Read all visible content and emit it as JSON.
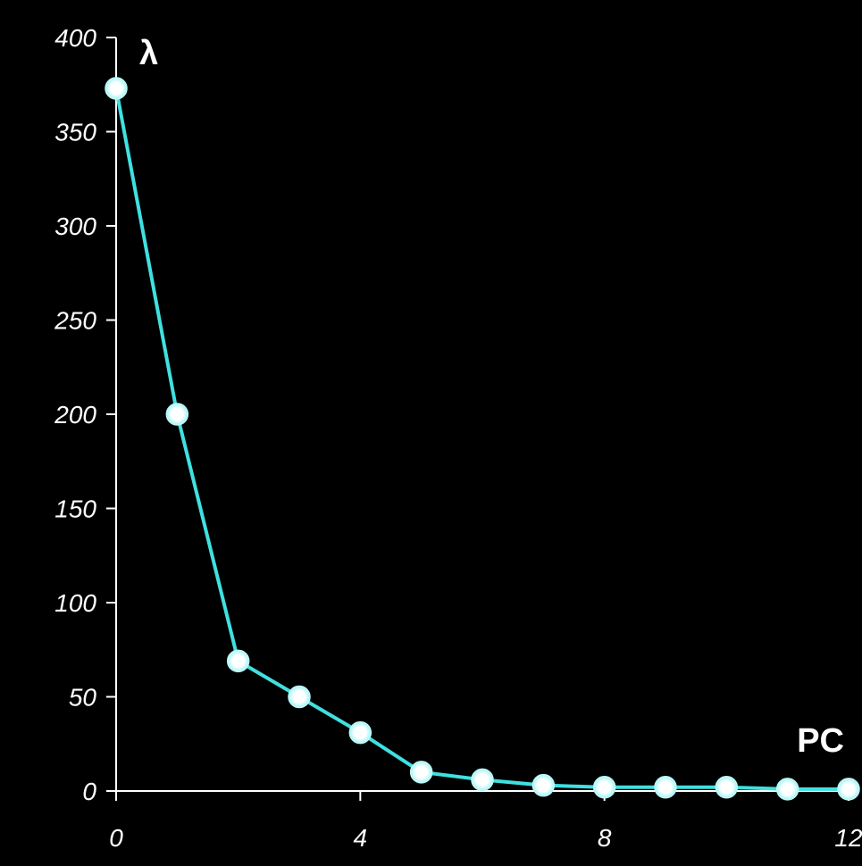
{
  "chart_data": {
    "type": "line",
    "title": "",
    "xlabel": "PC",
    "ylabel": "λ",
    "xlim": [
      0,
      12
    ],
    "ylim": [
      0,
      400
    ],
    "x_ticks": [
      0,
      4,
      8,
      12
    ],
    "y_ticks": [
      0,
      50,
      100,
      150,
      200,
      250,
      300,
      350,
      400
    ],
    "grid": false,
    "series": [
      {
        "x": [
          0,
          1,
          2,
          3,
          4,
          5,
          6,
          7,
          8,
          9,
          10,
          11,
          12
        ],
        "values": [
          373,
          200,
          69,
          50,
          31,
          10,
          6,
          3,
          2,
          2,
          2,
          1,
          1
        ]
      }
    ],
    "colors": {
      "background": "#000000",
      "axis": "#ffffff",
      "line": "#40e0e0",
      "marker_fill": "#ffffff",
      "text": "#ffffff"
    }
  }
}
